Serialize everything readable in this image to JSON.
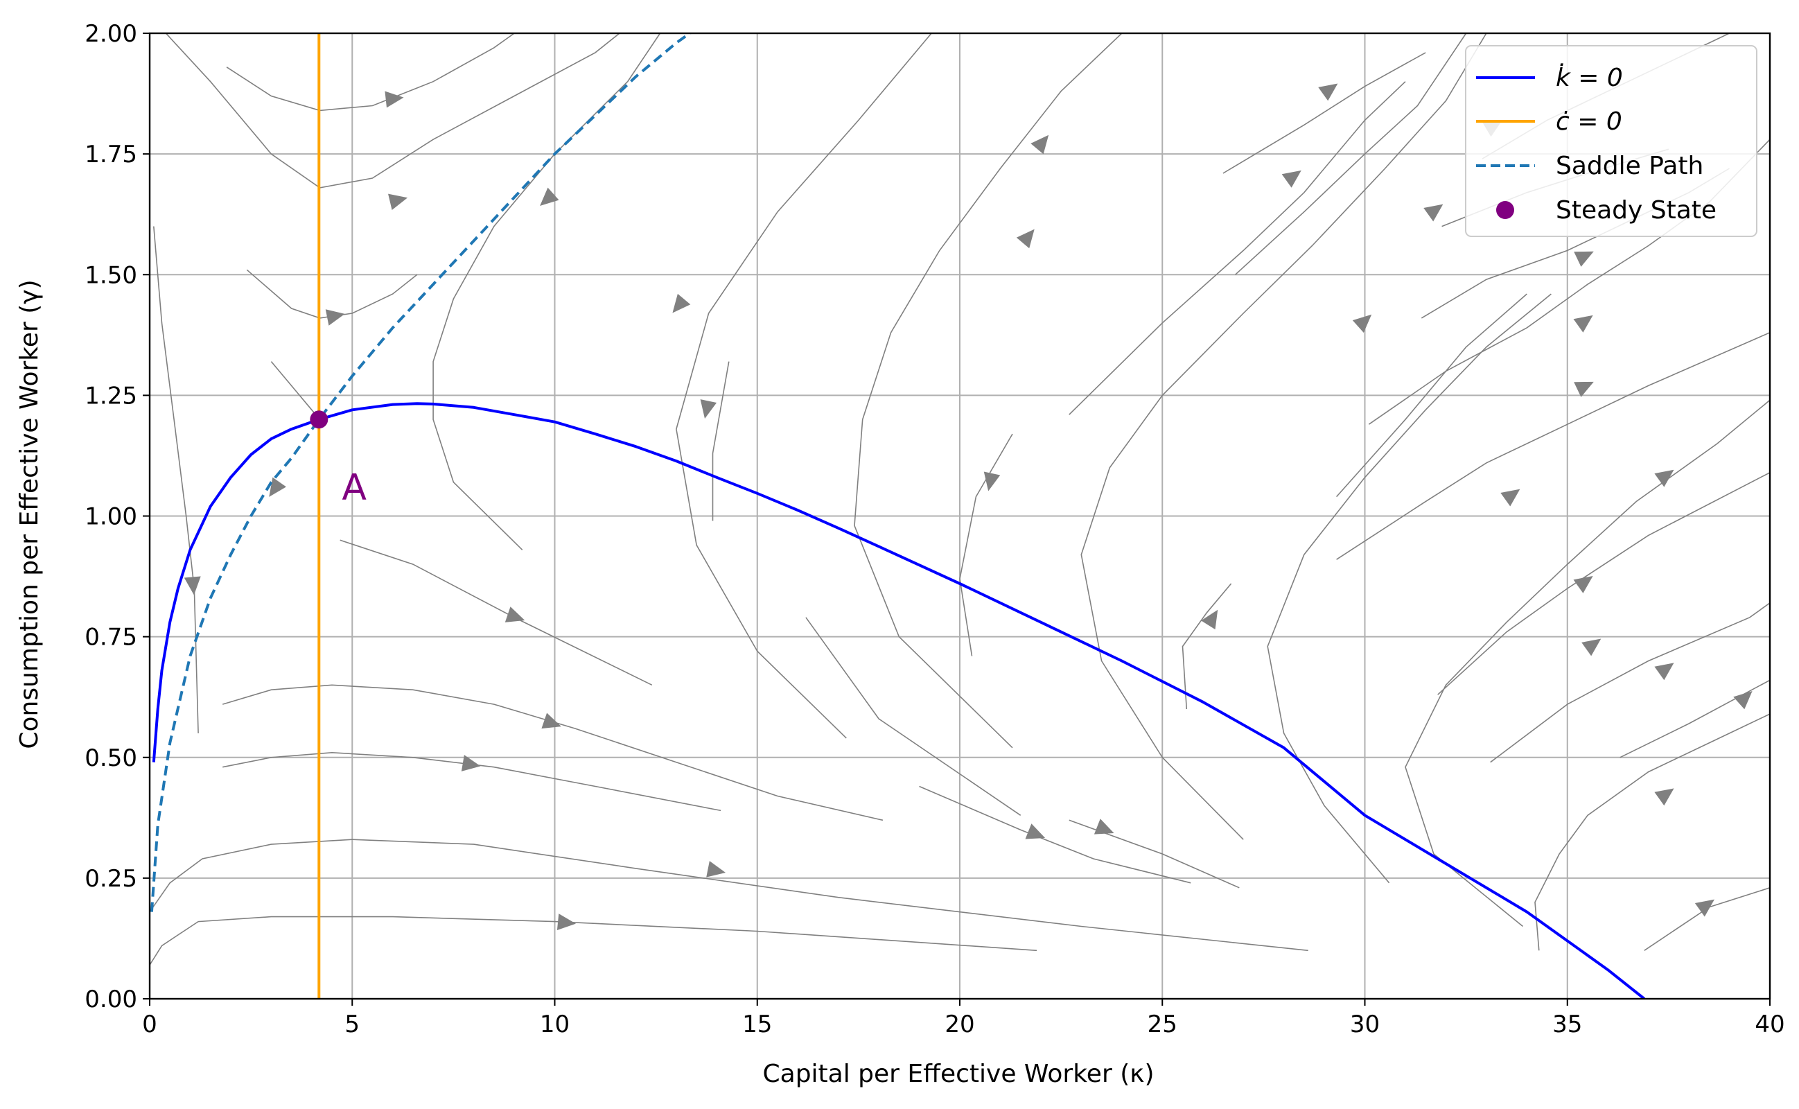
{
  "chart_data": {
    "type": "line",
    "title": "",
    "xlabel": "Capital per Effective Worker (κ)",
    "ylabel": "Consumption per Effective Worker (γ)",
    "xlim": [
      0,
      40
    ],
    "ylim": [
      0,
      2.0
    ],
    "xticks": [
      0,
      5,
      10,
      15,
      20,
      25,
      30,
      35,
      40
    ],
    "xtick_labels": [
      "0",
      "5",
      "10",
      "15",
      "20",
      "25",
      "30",
      "35",
      "40"
    ],
    "yticks": [
      0.0,
      0.25,
      0.5,
      0.75,
      1.0,
      1.25,
      1.5,
      1.75,
      2.0
    ],
    "ytick_labels": [
      "0.00",
      "0.25",
      "0.50",
      "0.75",
      "1.00",
      "1.25",
      "1.50",
      "1.75",
      "2.00"
    ],
    "grid": true,
    "legend_position": "top-right",
    "colors": {
      "k_dot": "#0000ff",
      "c_dot": "#ffa500",
      "saddle": "#1f77b4",
      "steady": "#800080",
      "stream": "#808080",
      "grid": "#b0b0b0"
    },
    "legend": [
      {
        "key": "k_dot",
        "label": "k̇ = 0",
        "style": "solid",
        "color": "#0000ff"
      },
      {
        "key": "c_dot",
        "label": "ċ = 0",
        "style": "solid",
        "color": "#ffa500"
      },
      {
        "key": "saddle",
        "label": "Saddle Path",
        "style": "dashed",
        "color": "#1f77b4"
      },
      {
        "key": "steady",
        "label": "Steady State",
        "style": "marker",
        "color": "#800080"
      }
    ],
    "series": [
      {
        "name": "k̇ = 0",
        "color": "#0000ff",
        "style": "solid",
        "x": [
          0.1,
          0.2,
          0.3,
          0.5,
          0.7,
          1.0,
          1.5,
          2.0,
          2.5,
          3.0,
          3.5,
          4.18,
          5.0,
          6.0,
          6.6,
          7.0,
          8.0,
          9.0,
          10.0,
          11.0,
          12.0,
          13.0,
          14.0,
          15.0,
          16.0,
          17.0,
          18.0,
          20.0,
          22.0,
          24.0,
          26.0,
          28.0,
          30.0,
          32.0,
          34.0,
          36.0,
          36.9
        ],
        "y": [
          0.49,
          0.6,
          0.68,
          0.78,
          0.85,
          0.93,
          1.02,
          1.08,
          1.127,
          1.16,
          1.18,
          1.2,
          1.22,
          1.231,
          1.233,
          1.232,
          1.225,
          1.21,
          1.195,
          1.17,
          1.144,
          1.114,
          1.08,
          1.047,
          1.012,
          0.975,
          0.937,
          0.86,
          0.78,
          0.7,
          0.615,
          0.52,
          0.38,
          0.28,
          0.18,
          0.06,
          0.0
        ]
      },
      {
        "name": "ċ = 0",
        "color": "#ffa500",
        "style": "solid",
        "x": [
          4.18,
          4.18
        ],
        "y": [
          0.0,
          2.0
        ]
      },
      {
        "name": "Saddle Path",
        "color": "#1f77b4",
        "style": "dashed",
        "x": [
          0.05,
          0.2,
          0.5,
          1.0,
          1.5,
          2.0,
          2.5,
          3.0,
          3.5,
          4.18,
          5.0,
          6.0,
          7.0,
          8.0,
          9.0,
          10.0,
          11.0,
          12.0,
          13.0,
          13.5
        ],
        "y": [
          0.18,
          0.36,
          0.53,
          0.71,
          0.83,
          0.92,
          1.0,
          1.07,
          1.12,
          1.2,
          1.29,
          1.39,
          1.48,
          1.57,
          1.66,
          1.75,
          1.83,
          1.91,
          1.98,
          2.01
        ]
      }
    ],
    "steady_state": {
      "x": 4.18,
      "y": 1.2,
      "label": "Steady State"
    },
    "annotation": {
      "text": "A",
      "x": 5.05,
      "y": 1.06
    },
    "streamlines": [
      [
        [
          0.4,
          2.0
        ],
        [
          1.5,
          1.9
        ],
        [
          3.0,
          1.75
        ],
        [
          4.2,
          1.68
        ],
        [
          5.5,
          1.7
        ],
        [
          7.0,
          1.78
        ],
        [
          9.0,
          1.87
        ],
        [
          11.0,
          1.96
        ],
        [
          11.6,
          2.0
        ]
      ],
      [
        [
          1.9,
          1.93
        ],
        [
          3.0,
          1.87
        ],
        [
          4.2,
          1.84
        ],
        [
          5.5,
          1.85
        ],
        [
          7.0,
          1.9
        ],
        [
          8.5,
          1.97
        ],
        [
          9.0,
          2.0
        ]
      ],
      [
        [
          2.4,
          1.51
        ],
        [
          3.5,
          1.43
        ],
        [
          4.2,
          1.41
        ],
        [
          5.0,
          1.42
        ],
        [
          6.0,
          1.46
        ],
        [
          6.6,
          1.5
        ]
      ],
      [
        [
          3.0,
          1.32
        ],
        [
          3.6,
          1.26
        ],
        [
          4.0,
          1.22
        ],
        [
          4.2,
          1.2
        ]
      ],
      [
        [
          0.1,
          1.6
        ],
        [
          0.3,
          1.4
        ],
        [
          0.6,
          1.2
        ],
        [
          0.9,
          1.0
        ],
        [
          1.1,
          0.85
        ],
        [
          1.2,
          0.55
        ]
      ],
      [
        [
          9.2,
          0.93
        ],
        [
          7.5,
          1.07
        ],
        [
          7.0,
          1.2
        ],
        [
          7.0,
          1.32
        ],
        [
          7.5,
          1.45
        ],
        [
          8.5,
          1.6
        ],
        [
          10.0,
          1.75
        ],
        [
          11.8,
          1.9
        ],
        [
          12.6,
          2.0
        ]
      ],
      [
        [
          13.9,
          0.99
        ],
        [
          13.9,
          1.13
        ],
        [
          14.3,
          1.32
        ]
      ],
      [
        [
          17.2,
          0.54
        ],
        [
          15.0,
          0.72
        ],
        [
          13.5,
          0.94
        ],
        [
          13.0,
          1.18
        ],
        [
          13.8,
          1.42
        ],
        [
          15.5,
          1.63
        ],
        [
          17.5,
          1.82
        ],
        [
          19.3,
          2.0
        ]
      ],
      [
        [
          20.3,
          0.71
        ],
        [
          20.0,
          0.87
        ],
        [
          20.4,
          1.04
        ],
        [
          21.3,
          1.17
        ]
      ],
      [
        [
          21.3,
          0.52
        ],
        [
          18.5,
          0.75
        ],
        [
          17.4,
          0.98
        ],
        [
          17.6,
          1.2
        ],
        [
          18.3,
          1.38
        ],
        [
          19.5,
          1.55
        ],
        [
          21.0,
          1.72
        ],
        [
          22.5,
          1.88
        ],
        [
          24.0,
          2.0
        ]
      ],
      [
        [
          21.5,
          0.38
        ],
        [
          18.0,
          0.58
        ],
        [
          16.2,
          0.79
        ]
      ],
      [
        [
          25.6,
          0.6
        ],
        [
          25.5,
          0.73
        ],
        [
          26.1,
          0.8
        ],
        [
          26.7,
          0.86
        ]
      ],
      [
        [
          27.0,
          0.33
        ],
        [
          25.0,
          0.5
        ],
        [
          23.5,
          0.7
        ],
        [
          23.0,
          0.92
        ],
        [
          23.7,
          1.1
        ],
        [
          25.0,
          1.25
        ],
        [
          27.0,
          1.42
        ],
        [
          28.7,
          1.56
        ],
        [
          30.5,
          1.72
        ],
        [
          32.0,
          1.86
        ],
        [
          33.0,
          2.0
        ]
      ],
      [
        [
          22.7,
          0.37
        ],
        [
          25.0,
          0.3
        ],
        [
          26.9,
          0.23
        ]
      ],
      [
        [
          30.6,
          0.24
        ],
        [
          29.0,
          0.4
        ],
        [
          28.0,
          0.55
        ],
        [
          27.6,
          0.73
        ],
        [
          28.5,
          0.92
        ],
        [
          30.0,
          1.08
        ],
        [
          31.5,
          1.22
        ],
        [
          33.0,
          1.35
        ],
        [
          34.6,
          1.46
        ]
      ],
      [
        [
          33.9,
          0.15
        ],
        [
          31.7,
          0.3
        ],
        [
          31.0,
          0.48
        ],
        [
          32.0,
          0.65
        ],
        [
          33.5,
          0.78
        ],
        [
          35.0,
          0.9
        ],
        [
          36.7,
          1.03
        ],
        [
          38.7,
          1.15
        ],
        [
          40.0,
          1.24
        ]
      ],
      [
        [
          34.3,
          0.1
        ],
        [
          34.2,
          0.2
        ],
        [
          34.8,
          0.3
        ],
        [
          35.5,
          0.38
        ],
        [
          37.0,
          0.47
        ],
        [
          38.5,
          0.53
        ],
        [
          40.0,
          0.59
        ]
      ],
      [
        [
          36.9,
          0.1
        ],
        [
          38.5,
          0.19
        ],
        [
          40.0,
          0.23
        ]
      ],
      [
        [
          1.8,
          0.61
        ],
        [
          3.0,
          0.64
        ],
        [
          4.5,
          0.65
        ],
        [
          6.5,
          0.64
        ],
        [
          8.5,
          0.61
        ],
        [
          10.5,
          0.56
        ],
        [
          13.0,
          0.49
        ],
        [
          15.5,
          0.42
        ],
        [
          18.1,
          0.37
        ]
      ],
      [
        [
          1.8,
          0.48
        ],
        [
          3.0,
          0.5
        ],
        [
          4.5,
          0.51
        ],
        [
          6.5,
          0.5
        ],
        [
          8.5,
          0.48
        ],
        [
          11.0,
          0.44
        ],
        [
          14.1,
          0.39
        ]
      ],
      [
        [
          0.0,
          0.18
        ],
        [
          0.5,
          0.24
        ],
        [
          1.3,
          0.29
        ],
        [
          3.0,
          0.32
        ],
        [
          5.0,
          0.33
        ],
        [
          8.0,
          0.32
        ],
        [
          12.0,
          0.27
        ],
        [
          17.0,
          0.21
        ],
        [
          23.0,
          0.15
        ],
        [
          28.6,
          0.1
        ]
      ],
      [
        [
          0.0,
          0.07
        ],
        [
          0.3,
          0.11
        ],
        [
          1.2,
          0.16
        ],
        [
          3.0,
          0.17
        ],
        [
          6.0,
          0.17
        ],
        [
          10.0,
          0.16
        ],
        [
          15.0,
          0.14
        ],
        [
          21.9,
          0.1
        ]
      ],
      [
        [
          4.7,
          0.95
        ],
        [
          6.5,
          0.9
        ],
        [
          9.0,
          0.79
        ],
        [
          12.4,
          0.65
        ]
      ],
      [
        [
          19.0,
          0.44
        ],
        [
          21.5,
          0.35
        ],
        [
          23.3,
          0.29
        ],
        [
          25.7,
          0.24
        ]
      ],
      [
        [
          26.8,
          1.5
        ],
        [
          28.5,
          1.63
        ],
        [
          30.0,
          1.75
        ],
        [
          31.3,
          1.85
        ],
        [
          32.5,
          2.0
        ]
      ],
      [
        [
          22.7,
          1.21
        ],
        [
          25.0,
          1.4
        ],
        [
          27.0,
          1.55
        ],
        [
          28.5,
          1.67
        ],
        [
          30.0,
          1.82
        ],
        [
          31.0,
          1.9
        ]
      ],
      [
        [
          26.5,
          1.71
        ],
        [
          28.5,
          1.81
        ],
        [
          30.0,
          1.89
        ],
        [
          31.5,
          1.96
        ]
      ],
      [
        [
          29.3,
          1.04
        ],
        [
          31.0,
          1.2
        ],
        [
          32.5,
          1.35
        ],
        [
          34.0,
          1.46
        ]
      ],
      [
        [
          30.1,
          1.19
        ],
        [
          32.0,
          1.3
        ],
        [
          34.0,
          1.39
        ],
        [
          35.5,
          1.48
        ],
        [
          37.0,
          1.56
        ],
        [
          38.5,
          1.65
        ],
        [
          40.0,
          1.78
        ]
      ],
      [
        [
          31.4,
          1.41
        ],
        [
          33.0,
          1.49
        ],
        [
          35.0,
          1.55
        ],
        [
          36.5,
          1.61
        ],
        [
          38.0,
          1.67
        ],
        [
          39.0,
          1.72
        ]
      ],
      [
        [
          31.9,
          1.6
        ],
        [
          34.0,
          1.67
        ],
        [
          35.5,
          1.71
        ],
        [
          37.5,
          1.76
        ]
      ],
      [
        [
          32.9,
          1.74
        ],
        [
          34.5,
          1.82
        ],
        [
          36.5,
          1.9
        ],
        [
          38.0,
          1.96
        ],
        [
          39.0,
          2.0
        ]
      ],
      [
        [
          29.3,
          0.91
        ],
        [
          31.5,
          1.03
        ],
        [
          33.0,
          1.11
        ],
        [
          35.0,
          1.19
        ],
        [
          37.0,
          1.27
        ],
        [
          40.0,
          1.38
        ]
      ],
      [
        [
          31.8,
          0.63
        ],
        [
          33.5,
          0.76
        ],
        [
          35.0,
          0.85
        ],
        [
          37.0,
          0.96
        ],
        [
          40.0,
          1.09
        ]
      ],
      [
        [
          33.1,
          0.49
        ],
        [
          35.0,
          0.61
        ],
        [
          37.0,
          0.7
        ],
        [
          39.5,
          0.79
        ],
        [
          40.0,
          0.82
        ]
      ],
      [
        [
          36.3,
          0.5
        ],
        [
          38.0,
          0.57
        ],
        [
          40.0,
          0.66
        ]
      ]
    ],
    "arrows": [
      [
        5.5,
        1.86,
        6.6,
        1.87
      ],
      [
        5.9,
        1.65,
        6.4,
        1.66
      ],
      [
        4.3,
        1.41,
        4.9,
        1.42
      ],
      [
        1.05,
        0.88,
        1.1,
        0.83
      ],
      [
        3.2,
        1.07,
        2.95,
        1.04
      ],
      [
        10.0,
        1.67,
        9.6,
        1.64
      ],
      [
        13.2,
        1.45,
        12.9,
        1.42
      ],
      [
        13.8,
        1.24,
        13.7,
        1.2
      ],
      [
        20.8,
        1.09,
        20.7,
        1.05
      ],
      [
        21.5,
        1.56,
        21.9,
        1.6
      ],
      [
        21.8,
        1.75,
        22.3,
        1.8
      ],
      [
        28.0,
        1.69,
        28.5,
        1.72
      ],
      [
        28.9,
        1.87,
        29.4,
        1.9
      ],
      [
        31.5,
        1.62,
        32.0,
        1.65
      ],
      [
        33.0,
        1.8,
        33.4,
        1.82
      ],
      [
        29.8,
        1.39,
        30.2,
        1.42
      ],
      [
        35.2,
        1.53,
        35.7,
        1.55
      ],
      [
        35.2,
        1.39,
        35.7,
        1.42
      ],
      [
        35.2,
        1.26,
        35.7,
        1.28
      ],
      [
        37.2,
        1.07,
        37.7,
        1.1
      ],
      [
        33.4,
        1.03,
        33.9,
        1.06
      ],
      [
        35.2,
        0.85,
        35.7,
        0.88
      ],
      [
        35.4,
        0.72,
        35.9,
        0.75
      ],
      [
        37.2,
        0.67,
        37.7,
        0.7
      ],
      [
        39.2,
        0.61,
        39.6,
        0.64
      ],
      [
        37.2,
        0.41,
        37.7,
        0.44
      ],
      [
        38.2,
        0.18,
        38.7,
        0.21
      ],
      [
        26.1,
        0.77,
        26.4,
        0.81
      ],
      [
        8.7,
        0.8,
        9.4,
        0.78
      ],
      [
        9.6,
        0.58,
        10.3,
        0.56
      ],
      [
        7.6,
        0.49,
        8.3,
        0.48
      ],
      [
        13.7,
        0.27,
        14.3,
        0.26
      ],
      [
        10.0,
        0.16,
        10.6,
        0.155
      ],
      [
        21.6,
        0.35,
        22.2,
        0.33
      ],
      [
        23.3,
        0.36,
        23.9,
        0.34
      ]
    ]
  }
}
